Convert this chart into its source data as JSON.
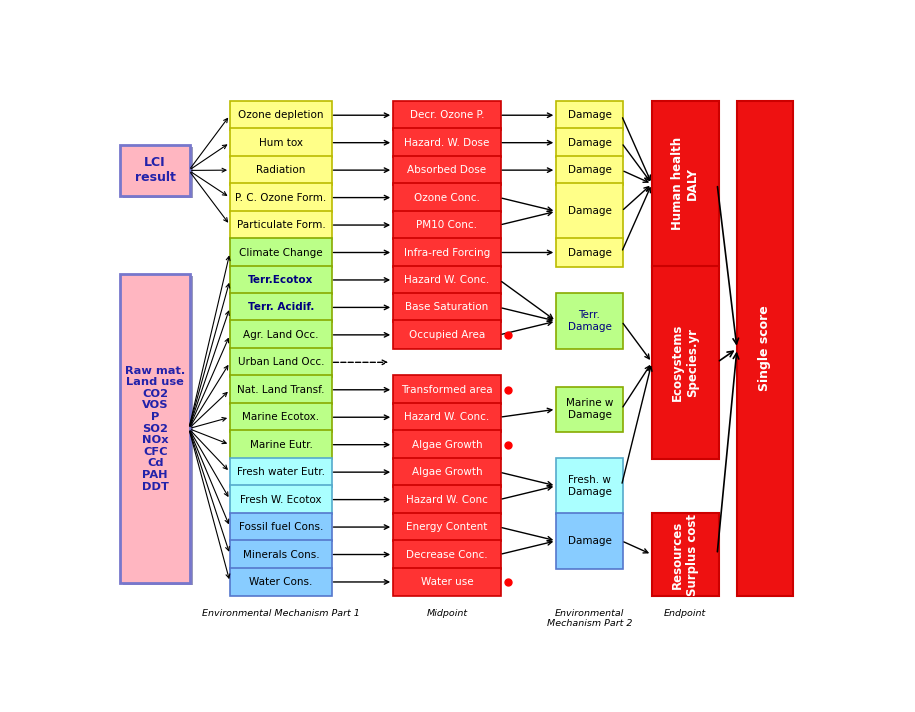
{
  "fig_width": 9.15,
  "fig_height": 7.12,
  "dpi": 100,
  "bg_color": "#ffffff",
  "lci_box": {
    "text": "LCI\nresult",
    "fc": "#FFB6C1",
    "ec": "#7777CC",
    "tc": "#2222AA",
    "fs": 9
  },
  "raw_box": {
    "text": "Raw mat.\nLand use\nCO2\nVOS\nP\nSO2\nNOx\nCFC\nCd\nPAH\nDDT",
    "fc": "#FFB6C1",
    "ec": "#7777CC",
    "tc": "#2222AA",
    "fs": 8.2
  },
  "col1_labels": [
    [
      "Ozone depletion",
      "#FFFF88",
      "#BBBB00",
      "#000000",
      false
    ],
    [
      "Hum tox",
      "#FFFF88",
      "#BBBB00",
      "#000000",
      false
    ],
    [
      "Radiation",
      "#FFFF88",
      "#BBBB00",
      "#000000",
      false
    ],
    [
      "P. C. Ozone Form.",
      "#FFFF88",
      "#BBBB00",
      "#000000",
      false
    ],
    [
      "Particulate Form.",
      "#FFFF88",
      "#BBBB00",
      "#000000",
      false
    ],
    [
      "Climate Change",
      "#BBFF88",
      "#88AA00",
      "#000000",
      false
    ],
    [
      "Terr.Ecotox",
      "#BBFF88",
      "#88AA00",
      "#000080",
      true
    ],
    [
      "Terr. Acidif.",
      "#BBFF88",
      "#88AA00",
      "#000080",
      true
    ],
    [
      "Agr. Land Occ.",
      "#BBFF88",
      "#88AA00",
      "#000000",
      false
    ],
    [
      "Urban Land Occ.",
      "#BBFF88",
      "#88AA00",
      "#000000",
      false
    ],
    [
      "Nat. Land Transf.",
      "#BBFF88",
      "#88AA00",
      "#000000",
      false
    ],
    [
      "Marine Ecotox.",
      "#BBFF88",
      "#88AA00",
      "#000000",
      false
    ],
    [
      "Marine Eutr.",
      "#BBFF88",
      "#88AA00",
      "#000000",
      false
    ],
    [
      "Fresh water Eutr.",
      "#AAFFFF",
      "#55AACC",
      "#000000",
      false
    ],
    [
      "Fresh W. Ecotox",
      "#AAFFFF",
      "#55AACC",
      "#000000",
      false
    ],
    [
      "Fossil fuel Cons.",
      "#88CCFF",
      "#5577CC",
      "#000000",
      false
    ],
    [
      "Minerals Cons.",
      "#88CCFF",
      "#5577CC",
      "#000000",
      false
    ],
    [
      "Water Cons.",
      "#88CCFF",
      "#5577CC",
      "#000000",
      false
    ]
  ],
  "col2_labels": [
    [
      "Decr. Ozone P.",
      "#FF3333",
      "#CC0000",
      "#FFFFFF"
    ],
    [
      "Hazard. W. Dose",
      "#FF3333",
      "#CC0000",
      "#FFFFFF"
    ],
    [
      "Absorbed Dose",
      "#FF3333",
      "#CC0000",
      "#FFFFFF"
    ],
    [
      "Ozone Conc.",
      "#FF3333",
      "#CC0000",
      "#FFFFFF"
    ],
    [
      "PM10 Conc.",
      "#FF3333",
      "#CC0000",
      "#FFFFFF"
    ],
    [
      "Infra-red Forcing",
      "#FF3333",
      "#CC0000",
      "#FFFFFF"
    ],
    [
      "Hazard W. Conc.",
      "#FF3333",
      "#CC0000",
      "#FFFFFF"
    ],
    [
      "Base Saturation",
      "#FF3333",
      "#CC0000",
      "#FFFFFF"
    ],
    [
      "Occupied Area",
      "#FF3333",
      "#CC0000",
      "#FFFFFF"
    ],
    null,
    [
      "Transformed area",
      "#FF3333",
      "#CC0000",
      "#FFFFFF"
    ],
    [
      "Hazard W. Conc.",
      "#FF3333",
      "#CC0000",
      "#FFFFFF"
    ],
    [
      "Algae Growth",
      "#FF3333",
      "#CC0000",
      "#FFFFFF"
    ],
    [
      "Algae Growth",
      "#FF3333",
      "#CC0000",
      "#FFFFFF"
    ],
    [
      "Hazard W. Conc",
      "#FF3333",
      "#CC0000",
      "#FFFFFF"
    ],
    [
      "Energy Content",
      "#FF3333",
      "#CC0000",
      "#FFFFFF"
    ],
    [
      "Decrease Conc.",
      "#FF3333",
      "#CC0000",
      "#FFFFFF"
    ],
    [
      "Water use",
      "#FF3333",
      "#CC0000",
      "#FFFFFF"
    ]
  ],
  "red_dot_rows": [
    8,
    10,
    12,
    17
  ],
  "xlabel_col1": "Environmental Mechanism Part 1",
  "xlabel_col2": "Midpoint",
  "xlabel_col3": "Environmental\nMechanism Part 2",
  "xlabel_col4": "Endpoint"
}
